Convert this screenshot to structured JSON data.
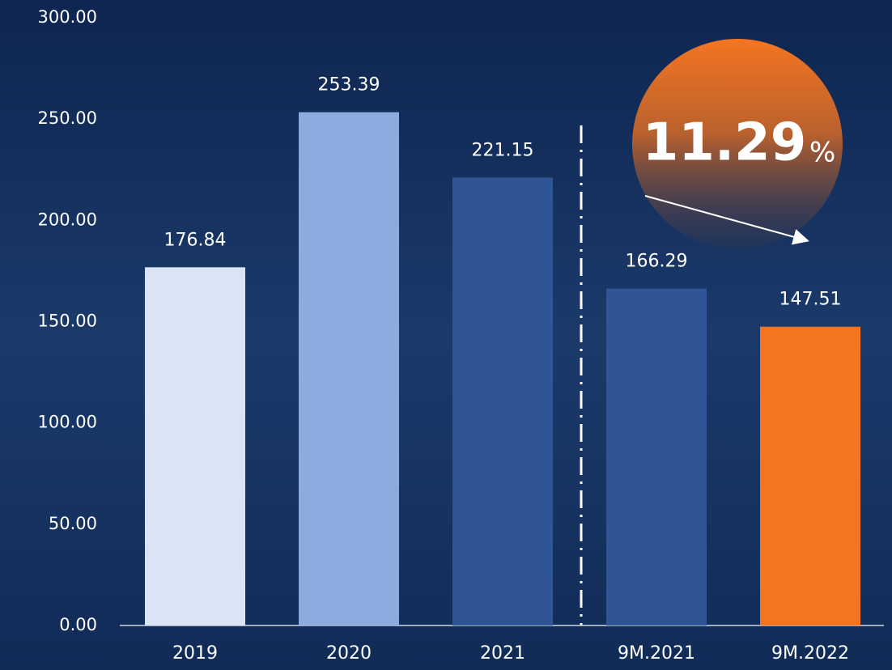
{
  "chart_data": {
    "type": "bar",
    "categories": [
      "2019",
      "2020",
      "2021",
      "9M.2021",
      "9M.2022"
    ],
    "values": [
      176.84,
      253.39,
      221.15,
      166.29,
      147.51
    ],
    "colors": [
      "#dbe4f5",
      "#8eabdf",
      "#2f5597",
      "#2f5597",
      "#f47521"
    ],
    "ylim": [
      0,
      300
    ],
    "yticks": [
      {
        "value": 0,
        "label": "0.00"
      },
      {
        "value": 50,
        "label": "50.00"
      },
      {
        "value": 100,
        "label": "100.00"
      },
      {
        "value": 150,
        "label": "150.00"
      },
      {
        "value": 200,
        "label": "200.00"
      },
      {
        "value": 250,
        "label": "250.00"
      },
      {
        "value": 300,
        "label": "300.00"
      }
    ],
    "grid": false,
    "annotation": {
      "text": "11.29",
      "unit": "%"
    }
  }
}
